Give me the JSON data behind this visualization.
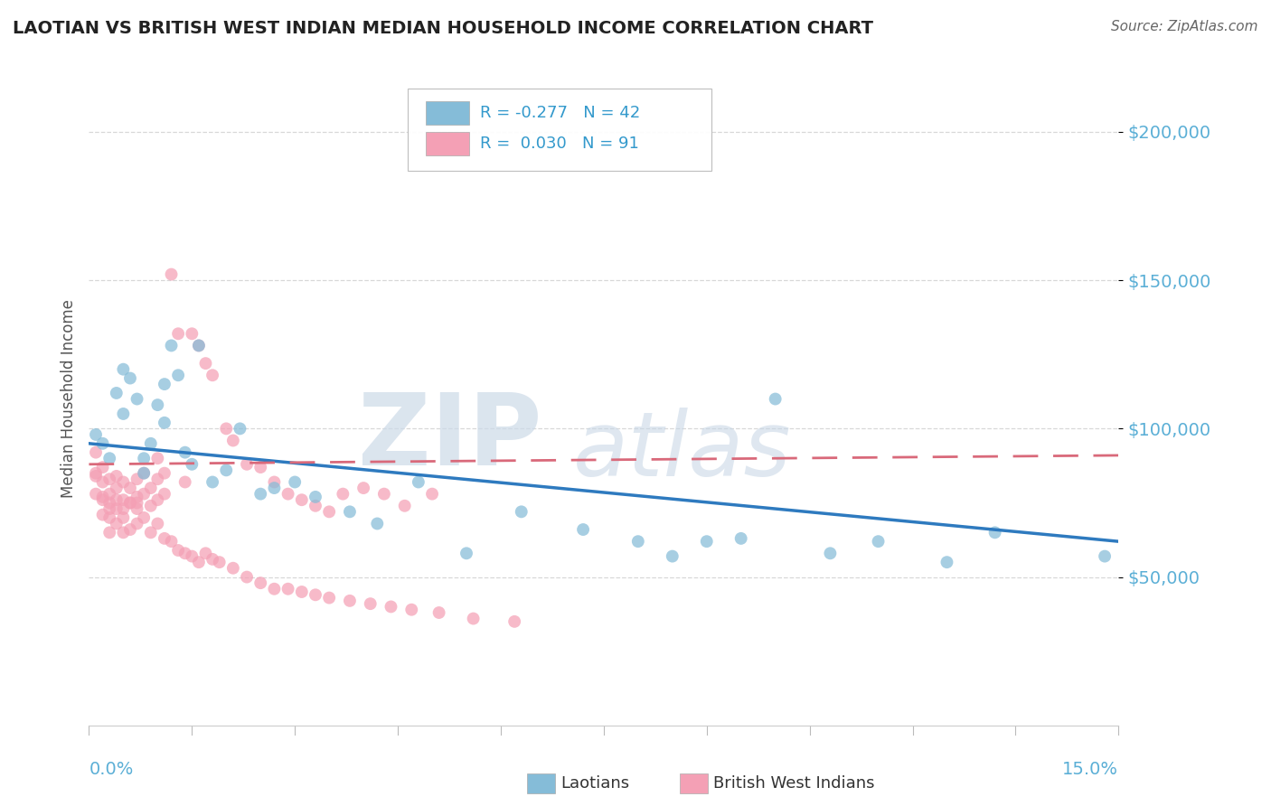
{
  "title": "LAOTIAN VS BRITISH WEST INDIAN MEDIAN HOUSEHOLD INCOME CORRELATION CHART",
  "source": "Source: ZipAtlas.com",
  "ylabel": "Median Household Income",
  "xmin": 0.0,
  "xmax": 0.15,
  "ymin": 0,
  "ymax": 220000,
  "yticks": [
    50000,
    100000,
    150000,
    200000
  ],
  "ytick_labels": [
    "$50,000",
    "$100,000",
    "$150,000",
    "$200,000"
  ],
  "blue_scatter_color": "#85bcd8",
  "pink_scatter_color": "#f4a0b5",
  "blue_line_color": "#2e7abf",
  "pink_line_color": "#d9697a",
  "watermark_zip_color": "#d0dce8",
  "watermark_atlas_color": "#c8d8e8",
  "blue_intercept": 95000,
  "blue_slope": -220000,
  "pink_intercept": 88000,
  "pink_slope": 20000,
  "laotian_x": [
    0.001,
    0.002,
    0.003,
    0.004,
    0.005,
    0.005,
    0.006,
    0.007,
    0.008,
    0.008,
    0.009,
    0.01,
    0.011,
    0.011,
    0.012,
    0.013,
    0.014,
    0.015,
    0.016,
    0.018,
    0.02,
    0.022,
    0.025,
    0.027,
    0.03,
    0.033,
    0.038,
    0.042,
    0.048,
    0.055,
    0.063,
    0.072,
    0.08,
    0.085,
    0.09,
    0.095,
    0.1,
    0.108,
    0.115,
    0.125,
    0.132,
    0.148
  ],
  "laotian_y": [
    98000,
    95000,
    90000,
    112000,
    105000,
    120000,
    117000,
    110000,
    90000,
    85000,
    95000,
    108000,
    102000,
    115000,
    128000,
    118000,
    92000,
    88000,
    128000,
    82000,
    86000,
    100000,
    78000,
    80000,
    82000,
    77000,
    72000,
    68000,
    82000,
    58000,
    72000,
    66000,
    62000,
    57000,
    62000,
    63000,
    110000,
    58000,
    62000,
    55000,
    65000,
    57000
  ],
  "bwi_x": [
    0.001,
    0.001,
    0.002,
    0.002,
    0.002,
    0.003,
    0.003,
    0.003,
    0.003,
    0.004,
    0.004,
    0.004,
    0.005,
    0.005,
    0.005,
    0.006,
    0.006,
    0.007,
    0.007,
    0.007,
    0.008,
    0.008,
    0.009,
    0.009,
    0.01,
    0.01,
    0.01,
    0.011,
    0.011,
    0.012,
    0.013,
    0.014,
    0.015,
    0.016,
    0.017,
    0.018,
    0.02,
    0.021,
    0.023,
    0.025,
    0.027,
    0.029,
    0.031,
    0.033,
    0.035,
    0.037,
    0.04,
    0.043,
    0.046,
    0.05,
    0.001,
    0.001,
    0.002,
    0.002,
    0.003,
    0.003,
    0.004,
    0.004,
    0.005,
    0.005,
    0.006,
    0.006,
    0.007,
    0.007,
    0.008,
    0.009,
    0.01,
    0.011,
    0.012,
    0.013,
    0.014,
    0.015,
    0.016,
    0.017,
    0.018,
    0.019,
    0.021,
    0.023,
    0.025,
    0.027,
    0.029,
    0.031,
    0.033,
    0.035,
    0.038,
    0.041,
    0.044,
    0.047,
    0.051,
    0.056,
    0.062
  ],
  "bwi_y": [
    85000,
    92000,
    76000,
    82000,
    87000,
    70000,
    78000,
    83000,
    75000,
    73000,
    80000,
    84000,
    70000,
    76000,
    82000,
    75000,
    80000,
    77000,
    83000,
    73000,
    78000,
    85000,
    74000,
    80000,
    76000,
    83000,
    90000,
    78000,
    85000,
    152000,
    132000,
    82000,
    132000,
    128000,
    122000,
    118000,
    100000,
    96000,
    88000,
    87000,
    82000,
    78000,
    76000,
    74000,
    72000,
    78000,
    80000,
    78000,
    74000,
    78000,
    78000,
    84000,
    71000,
    77000,
    65000,
    73000,
    68000,
    76000,
    65000,
    73000,
    66000,
    75000,
    68000,
    75000,
    70000,
    65000,
    68000,
    63000,
    62000,
    59000,
    58000,
    57000,
    55000,
    58000,
    56000,
    55000,
    53000,
    50000,
    48000,
    46000,
    46000,
    45000,
    44000,
    43000,
    42000,
    41000,
    40000,
    39000,
    38000,
    36000,
    35000
  ]
}
